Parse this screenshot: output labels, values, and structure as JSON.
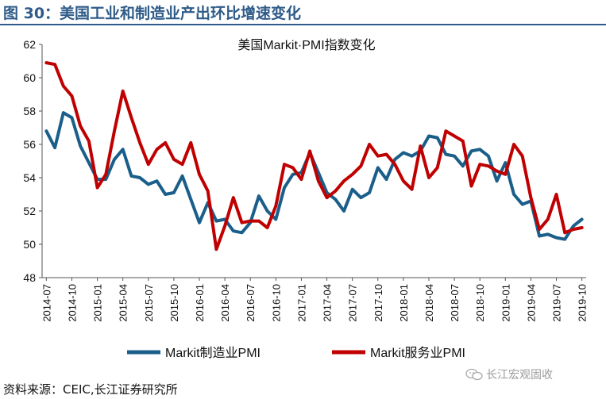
{
  "figure": {
    "title": "图 30：美国工业和制造业产出环比增速变化",
    "source": "资料来源：CEIC,长江证券研究所",
    "watermark": "长江宏观固收",
    "colors": {
      "title": "#2e5b88",
      "manufacturing": "#1a5e8a",
      "services": "#c00000"
    }
  },
  "chart_data": {
    "type": "line",
    "title": "美国Markit·PMI指数变化",
    "xlabel": "",
    "ylabel": "",
    "ylim": [
      48,
      62
    ],
    "yticks": [
      "48",
      "50",
      "52",
      "54",
      "56",
      "58",
      "60",
      "62"
    ],
    "grid": false,
    "legend_position": "bottom",
    "x": [
      "2014-07",
      "2014-08",
      "2014-09",
      "2014-10",
      "2014-11",
      "2014-12",
      "2015-01",
      "2015-02",
      "2015-03",
      "2015-04",
      "2015-05",
      "2015-06",
      "2015-07",
      "2015-08",
      "2015-09",
      "2015-10",
      "2015-11",
      "2015-12",
      "2016-01",
      "2016-02",
      "2016-03",
      "2016-04",
      "2016-05",
      "2016-06",
      "2016-07",
      "2016-08",
      "2016-09",
      "2016-10",
      "2016-11",
      "2016-12",
      "2017-01",
      "2017-02",
      "2017-03",
      "2017-04",
      "2017-05",
      "2017-06",
      "2017-07",
      "2017-08",
      "2017-09",
      "2017-10",
      "2017-11",
      "2017-12",
      "2018-01",
      "2018-02",
      "2018-03",
      "2018-04",
      "2018-05",
      "2018-06",
      "2018-07",
      "2018-08",
      "2018-09",
      "2018-10",
      "2018-11",
      "2018-12",
      "2019-01",
      "2019-02",
      "2019-03",
      "2019-04",
      "2019-05",
      "2019-06",
      "2019-07",
      "2019-08",
      "2019-09",
      "2019-10"
    ],
    "xtick_labels": [
      "2014-07",
      "2014-10",
      "2015-01",
      "2015-04",
      "2015-07",
      "2015-10",
      "2016-01",
      "2016-04",
      "2016-07",
      "2016-10",
      "2017-01",
      "2017-04",
      "2017-07",
      "2017-10",
      "2018-01",
      "2018-04",
      "2018-07",
      "2018-10",
      "2019-01",
      "2019-04",
      "2019-07",
      "2019-10"
    ],
    "series": [
      {
        "name": "Markit制造业PMI",
        "values": [
          56.8,
          55.8,
          57.9,
          57.6,
          55.9,
          54.9,
          53.9,
          53.9,
          55.1,
          55.7,
          54.1,
          54.0,
          53.6,
          53.8,
          53.0,
          53.1,
          54.1,
          52.7,
          51.3,
          52.5,
          51.4,
          51.5,
          50.8,
          50.7,
          51.3,
          52.9,
          52.0,
          51.5,
          53.4,
          54.2,
          54.3,
          55.5,
          54.3,
          53.1,
          52.7,
          52.0,
          53.3,
          52.8,
          53.1,
          54.6,
          53.9,
          55.1,
          55.5,
          55.3,
          55.6,
          56.5,
          56.4,
          55.4,
          55.3,
          54.7,
          55.6,
          55.7,
          55.3,
          53.8,
          54.9,
          53.0,
          52.4,
          52.6,
          50.5,
          50.6,
          50.4,
          50.3,
          51.1,
          51.5
        ]
      },
      {
        "name": "Markit服务业PMI",
        "values": [
          60.9,
          60.8,
          59.5,
          58.9,
          57.1,
          56.2,
          53.4,
          54.2,
          56.8,
          59.2,
          57.6,
          56.1,
          54.8,
          55.7,
          56.1,
          55.1,
          54.8,
          56.1,
          54.2,
          53.2,
          49.7,
          51.1,
          52.8,
          51.3,
          51.4,
          51.4,
          51.0,
          52.3,
          54.8,
          54.6,
          53.9,
          55.6,
          53.8,
          52.8,
          53.2,
          53.8,
          54.2,
          54.7,
          56.0,
          55.3,
          55.4,
          54.8,
          53.8,
          53.3,
          55.9,
          54.0,
          54.6,
          56.8,
          56.5,
          56.2,
          53.5,
          54.8,
          54.7,
          54.4,
          54.2,
          56.0,
          55.3,
          52.8,
          50.9,
          51.5,
          53.0,
          50.7,
          50.9,
          51.0
        ]
      }
    ]
  }
}
